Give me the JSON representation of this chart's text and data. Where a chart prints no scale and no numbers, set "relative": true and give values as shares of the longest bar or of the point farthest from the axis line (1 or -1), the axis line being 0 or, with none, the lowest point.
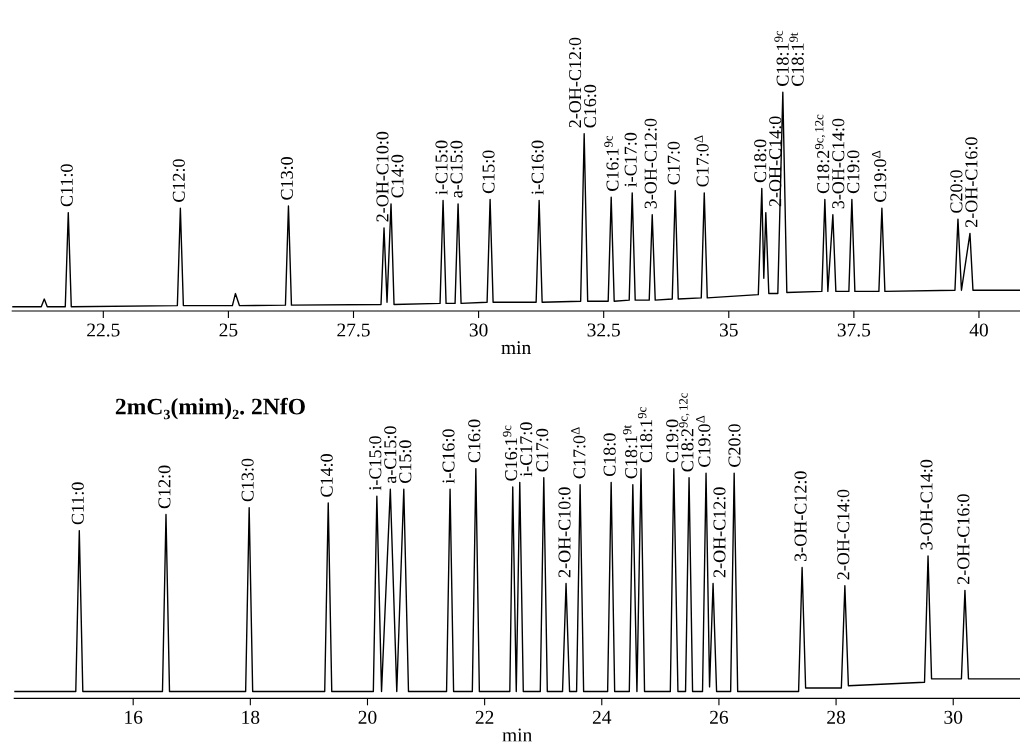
{
  "chart_data": [
    {
      "type": "line",
      "relative": true,
      "xlabel": "min",
      "xlim": [
        20.68,
        40.82
      ],
      "xticks": [
        22.5,
        25,
        27.5,
        30,
        32.5,
        35,
        37.5,
        40
      ],
      "grid": false,
      "legend": false,
      "marker": "none",
      "line_style": "solid",
      "series": [
        {
          "color": "#000000",
          "x": [
            20.68,
            21.26,
            21.32,
            21.38,
            21.74,
            21.8,
            21.86,
            23.98,
            24.04,
            24.1,
            25.08,
            25.14,
            25.22,
            26.14,
            26.2,
            26.26,
            28.05,
            28.11,
            28.17,
            28.25,
            28.31,
            29.23,
            29.29,
            29.35,
            29.53,
            29.59,
            29.65,
            30.17,
            30.23,
            30.29,
            31.15,
            31.21,
            31.27,
            32.04,
            32.11,
            32.18,
            32.59,
            32.65,
            32.71,
            33.01,
            33.07,
            33.13,
            33.41,
            33.47,
            33.53,
            33.87,
            33.93,
            33.99,
            34.45,
            34.51,
            34.57,
            35.59,
            35.66,
            35.7,
            35.74,
            35.8,
            35.98,
            36.08,
            36.16,
            36.86,
            36.92,
            36.98,
            37.08,
            37.14,
            37.4,
            37.46,
            37.52,
            38.0,
            38.06,
            38.12,
            39.52,
            39.58,
            39.65,
            39.82,
            39.88,
            40.82
          ],
          "values": [
            0.02,
            0.02,
            0.055,
            0.02,
            0.02,
            0.45,
            0.02,
            0.025,
            0.47,
            0.025,
            0.025,
            0.08,
            0.025,
            0.027,
            0.48,
            0.027,
            0.03,
            0.38,
            0.04,
            0.49,
            0.03,
            0.035,
            0.505,
            0.035,
            0.035,
            0.49,
            0.035,
            0.04,
            0.51,
            0.04,
            0.04,
            0.505,
            0.04,
            0.045,
            0.81,
            0.045,
            0.045,
            0.52,
            0.045,
            0.05,
            0.54,
            0.05,
            0.05,
            0.44,
            0.05,
            0.055,
            0.55,
            0.055,
            0.06,
            0.54,
            0.06,
            0.075,
            0.56,
            0.15,
            0.45,
            0.08,
            0.08,
            1.0,
            0.085,
            0.09,
            0.51,
            0.09,
            0.44,
            0.09,
            0.09,
            0.51,
            0.09,
            0.09,
            0.47,
            0.09,
            0.095,
            0.42,
            0.095,
            0.355,
            0.095,
            0.095
          ]
        }
      ],
      "annotations": [
        {
          "text": "C11:0",
          "x": 21.8,
          "y": 0.45
        },
        {
          "text": "C12:0",
          "x": 24.04,
          "y": 0.47
        },
        {
          "text": "C13:0",
          "x": 26.2,
          "y": 0.48
        },
        {
          "text": "2-OH-C10:0",
          "x": 28.11,
          "y": 0.38
        },
        {
          "text": "C14:0",
          "x": 28.25,
          "y": 0.49
        },
        {
          "text": "i-C15:0",
          "x": 29.29,
          "y": 0.505
        },
        {
          "text": "a-C15:0",
          "x": 29.59,
          "y": 0.49
        },
        {
          "text": "C15:0",
          "x": 30.23,
          "y": 0.51
        },
        {
          "text": "i-C16:0",
          "x": 31.21,
          "y": 0.505
        },
        {
          "text": "2-OH-C12:0",
          "x": 32.11,
          "y": 0.81
        },
        {
          "text": "C16:0",
          "x": 32.11,
          "y": 0.81
        },
        {
          "text": "C16:1$^{9c}$",
          "x": 32.65,
          "y": 0.52
        },
        {
          "text": "i-C17:0",
          "x": 33.07,
          "y": 0.54
        },
        {
          "text": "3-OH-C12:0",
          "x": 33.47,
          "y": 0.44
        },
        {
          "text": "C17:0",
          "x": 33.93,
          "y": 0.55
        },
        {
          "text": "C17:0$^{Δ}$",
          "x": 34.51,
          "y": 0.54
        },
        {
          "text": "C18:0",
          "x": 35.66,
          "y": 0.56
        },
        {
          "text": "2-OH-C14:0",
          "x": 35.74,
          "y": 0.45
        },
        {
          "text": "C18:1$^{9c}$",
          "x": 36.08,
          "y": 1.0
        },
        {
          "text": "C18:1$^{9t}$",
          "x": 36.08,
          "y": 1.0
        },
        {
          "text": "C18:2$^{9c,12c}$",
          "x": 36.92,
          "y": 0.51
        },
        {
          "text": "3-OH-C14:0",
          "x": 37.08,
          "y": 0.44
        },
        {
          "text": "C19:0",
          "x": 37.46,
          "y": 0.51
        },
        {
          "text": "C19:0$^{Δ}$",
          "x": 38.06,
          "y": 0.47
        },
        {
          "text": "C20:0",
          "x": 39.58,
          "y": 0.42
        },
        {
          "text": "2-OH-C16:0",
          "x": 39.82,
          "y": 0.355
        }
      ]
    },
    {
      "type": "line",
      "relative": true,
      "title": "2mC₃(mim)₂. 2NfO",
      "xlabel": "min",
      "xlim": [
        13.97,
        31.14
      ],
      "xticks": [
        16,
        18,
        20,
        22,
        24,
        26,
        28,
        30
      ],
      "grid": false,
      "legend": false,
      "marker": "none",
      "line_style": "solid",
      "series": [
        {
          "color": "#000000",
          "x": [
            13.97,
            15.02,
            15.08,
            15.14,
            16.5,
            16.56,
            16.62,
            17.92,
            17.98,
            18.04,
            19.27,
            19.33,
            19.39,
            20.1,
            20.16,
            20.24,
            20.39,
            20.5,
            20.62,
            20.7,
            21.35,
            21.41,
            21.47,
            21.79,
            21.85,
            21.91,
            22.43,
            22.48,
            22.54,
            22.6,
            22.66,
            22.95,
            23.01,
            23.07,
            23.33,
            23.39,
            23.45,
            23.57,
            23.63,
            23.69,
            24.1,
            24.16,
            24.22,
            24.47,
            24.53,
            24.6,
            24.67,
            24.73,
            25.17,
            25.23,
            25.3,
            25.43,
            25.49,
            25.55,
            25.72,
            25.78,
            25.84,
            25.9,
            25.96,
            26.2,
            26.26,
            26.32,
            27.36,
            27.42,
            27.48,
            28.09,
            28.15,
            28.21,
            29.51,
            29.57,
            29.63,
            30.14,
            30.2,
            30.26,
            31.14
          ],
          "values": [
            0.03,
            0.03,
            0.73,
            0.03,
            0.03,
            0.8,
            0.03,
            0.03,
            0.83,
            0.03,
            0.03,
            0.85,
            0.03,
            0.03,
            0.88,
            0.03,
            0.91,
            0.03,
            0.91,
            0.03,
            0.03,
            0.91,
            0.03,
            0.03,
            1.0,
            0.03,
            0.03,
            0.92,
            0.03,
            0.94,
            0.03,
            0.03,
            0.96,
            0.03,
            0.03,
            0.5,
            0.03,
            0.03,
            0.93,
            0.03,
            0.03,
            0.94,
            0.03,
            0.03,
            0.93,
            0.03,
            1.0,
            0.03,
            0.03,
            1.0,
            0.03,
            0.03,
            0.96,
            0.03,
            0.03,
            0.98,
            0.05,
            0.5,
            0.03,
            0.03,
            0.98,
            0.03,
            0.03,
            0.57,
            0.045,
            0.045,
            0.49,
            0.055,
            0.07,
            0.62,
            0.085,
            0.085,
            0.47,
            0.085,
            0.085
          ]
        }
      ],
      "annotations": [
        {
          "text": "C11:0",
          "x": 15.08,
          "y": 0.73
        },
        {
          "text": "C12:0",
          "x": 16.56,
          "y": 0.8
        },
        {
          "text": "C13:0",
          "x": 17.98,
          "y": 0.83
        },
        {
          "text": "C14:0",
          "x": 19.33,
          "y": 0.85
        },
        {
          "text": "i-C15:0",
          "x": 20.16,
          "y": 0.88
        },
        {
          "text": "a-C15:0",
          "x": 20.39,
          "y": 0.91
        },
        {
          "text": "C15:0",
          "x": 20.62,
          "y": 0.91
        },
        {
          "text": "i-C16:0",
          "x": 21.41,
          "y": 0.91
        },
        {
          "text": "C16:0",
          "x": 21.85,
          "y": 1.0
        },
        {
          "text": "C16:1$^{9c}$",
          "x": 22.48,
          "y": 0.92
        },
        {
          "text": "i-C17:0",
          "x": 22.6,
          "y": 0.94
        },
        {
          "text": "C17:0",
          "x": 23.01,
          "y": 0.96
        },
        {
          "text": "2-OH-C10:0",
          "x": 23.39,
          "y": 0.5
        },
        {
          "text": "C17:0$^{Δ}$",
          "x": 23.63,
          "y": 0.93
        },
        {
          "text": "C18:0",
          "x": 24.16,
          "y": 0.94
        },
        {
          "text": "C18:1$^{9t}$",
          "x": 24.53,
          "y": 0.93
        },
        {
          "text": "C18:1$^{9c}$",
          "x": 24.67,
          "y": 1.0
        },
        {
          "text": "C19:0",
          "x": 25.23,
          "y": 1.0
        },
        {
          "text": "C18:2$^{9c,12c}$",
          "x": 25.49,
          "y": 0.96
        },
        {
          "text": "C19:0$^{Δ}$",
          "x": 25.78,
          "y": 0.98
        },
        {
          "text": "2-OH-C12:0",
          "x": 25.9,
          "y": 0.5
        },
        {
          "text": "C20:0",
          "x": 26.26,
          "y": 0.98
        },
        {
          "text": "3-OH-C12:0",
          "x": 27.42,
          "y": 0.57
        },
        {
          "text": "2-OH-C14:0",
          "x": 28.15,
          "y": 0.49
        },
        {
          "text": "3-OH-C14:0",
          "x": 29.57,
          "y": 0.62
        },
        {
          "text": "2-OH-C16:0",
          "x": 30.2,
          "y": 0.47
        }
      ]
    }
  ]
}
